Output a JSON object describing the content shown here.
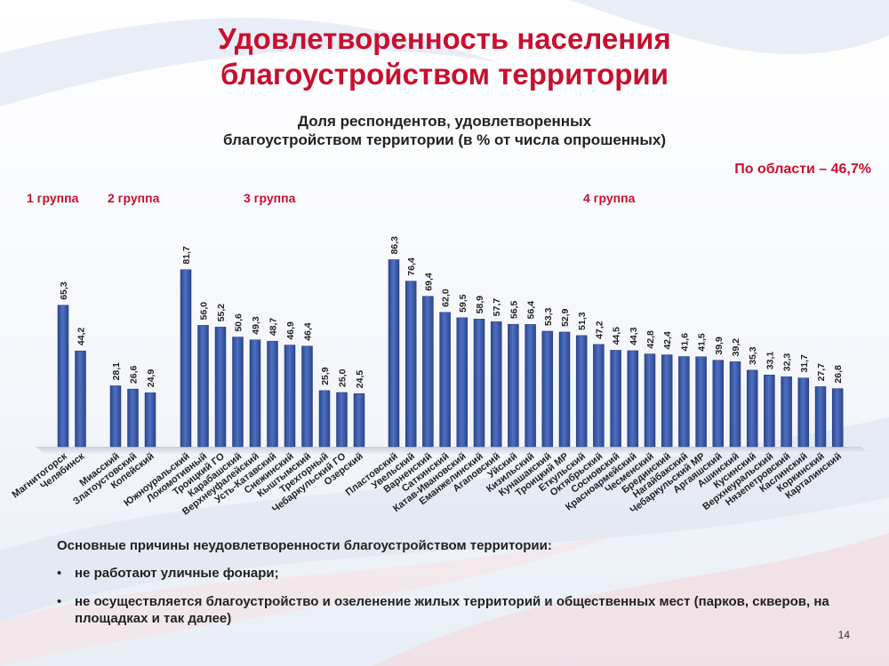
{
  "title_line1": "Удовлетворенность населения",
  "title_line2": "благоустройством территории",
  "chart_data": {
    "type": "bar",
    "title": "Доля респондентов, удовлетворенных благоустройством территории (в % от числа опрошенных)",
    "title_line1": "Доля респондентов, удовлетворенных",
    "title_line2": "благоустройством территории (в % от числа опрошенных)",
    "ylim": [
      0,
      100
    ],
    "grid": false,
    "groups": [
      {
        "label": "1 группа",
        "categories": [
          "Магнитогорск",
          "Челябинск"
        ],
        "values": [
          65.3,
          44.2
        ],
        "value_labels": [
          "65,3",
          "44,2"
        ]
      },
      {
        "label": "2 группа",
        "categories": [
          "Миасский",
          "Златоустовский",
          "Копейский"
        ],
        "values": [
          28.1,
          26.6,
          24.9
        ],
        "value_labels": [
          "28,1",
          "26,6",
          "24,9"
        ]
      },
      {
        "label": "3 группа",
        "categories": [
          "Южноуральский",
          "Локомотивный",
          "Троицкий ГО",
          "Карабашский",
          "Верхнеуфалейский",
          "Усть-Катавский",
          "Снежинский",
          "Кыштымский",
          "Трехгорный",
          "Чебаркульский ГО",
          "Озерский"
        ],
        "values": [
          81.7,
          56.0,
          55.2,
          50.6,
          49.3,
          48.7,
          46.9,
          46.4,
          25.9,
          25.0,
          24.5
        ],
        "value_labels": [
          "81,7",
          "56,0",
          "55,2",
          "50,6",
          "49,3",
          "48,7",
          "46,9",
          "46,4",
          "25,9",
          "25,0",
          "24,5"
        ]
      },
      {
        "label": "4 группа",
        "categories": [
          "Пластовский",
          "Увельский",
          "Варненский",
          "Саткинский",
          "Катав-Ивановский",
          "Еманжелинский",
          "Агаповский",
          "Уйский",
          "Кизильский",
          "Кунашакский",
          "Троицкий МР",
          "Еткульский",
          "Октябрьский",
          "Сосновский",
          "Красноармейский",
          "Чесменский",
          "Брединский",
          "Нагайбакский",
          "Чебаркульский МР",
          "Аргаяшский",
          "Ашинский",
          "Кусинский",
          "Верхнеуральский",
          "Нязепетровский",
          "Каслинский",
          "Коркинский",
          "Карталинский"
        ],
        "values": [
          86.3,
          76.4,
          69.4,
          62.0,
          59.5,
          58.9,
          57.7,
          56.5,
          56.4,
          53.3,
          52.9,
          51.3,
          47.2,
          44.5,
          44.3,
          42.8,
          42.4,
          41.6,
          41.5,
          39.9,
          39.2,
          35.3,
          33.1,
          32.3,
          31.7,
          27.7,
          26.8
        ],
        "value_labels": [
          "86,3",
          "76,4",
          "69,4",
          "62,0",
          "59,5",
          "58,9",
          "57,7",
          "56,5",
          "56,4",
          "53,3",
          "52,9",
          "51,3",
          "47,2",
          "44,5",
          "44,3",
          "42,8",
          "42,4",
          "41,6",
          "41,5",
          "39,9",
          "39,2",
          "35,3",
          "33,1",
          "32,3",
          "31,7",
          "27,7",
          "26,8"
        ]
      }
    ],
    "bar_color": "#3b5ba8",
    "annotation": "По области – 46,7%"
  },
  "reasons": {
    "heading": "Основные причины неудовлетворенности благоустройством территории:",
    "items": [
      "не работают уличные фонари;",
      "не осуществляется благоустройство и озеленение жилых территорий и общественных мест (парков, скверов, на площадках и так далее)"
    ]
  },
  "page_number": "14"
}
